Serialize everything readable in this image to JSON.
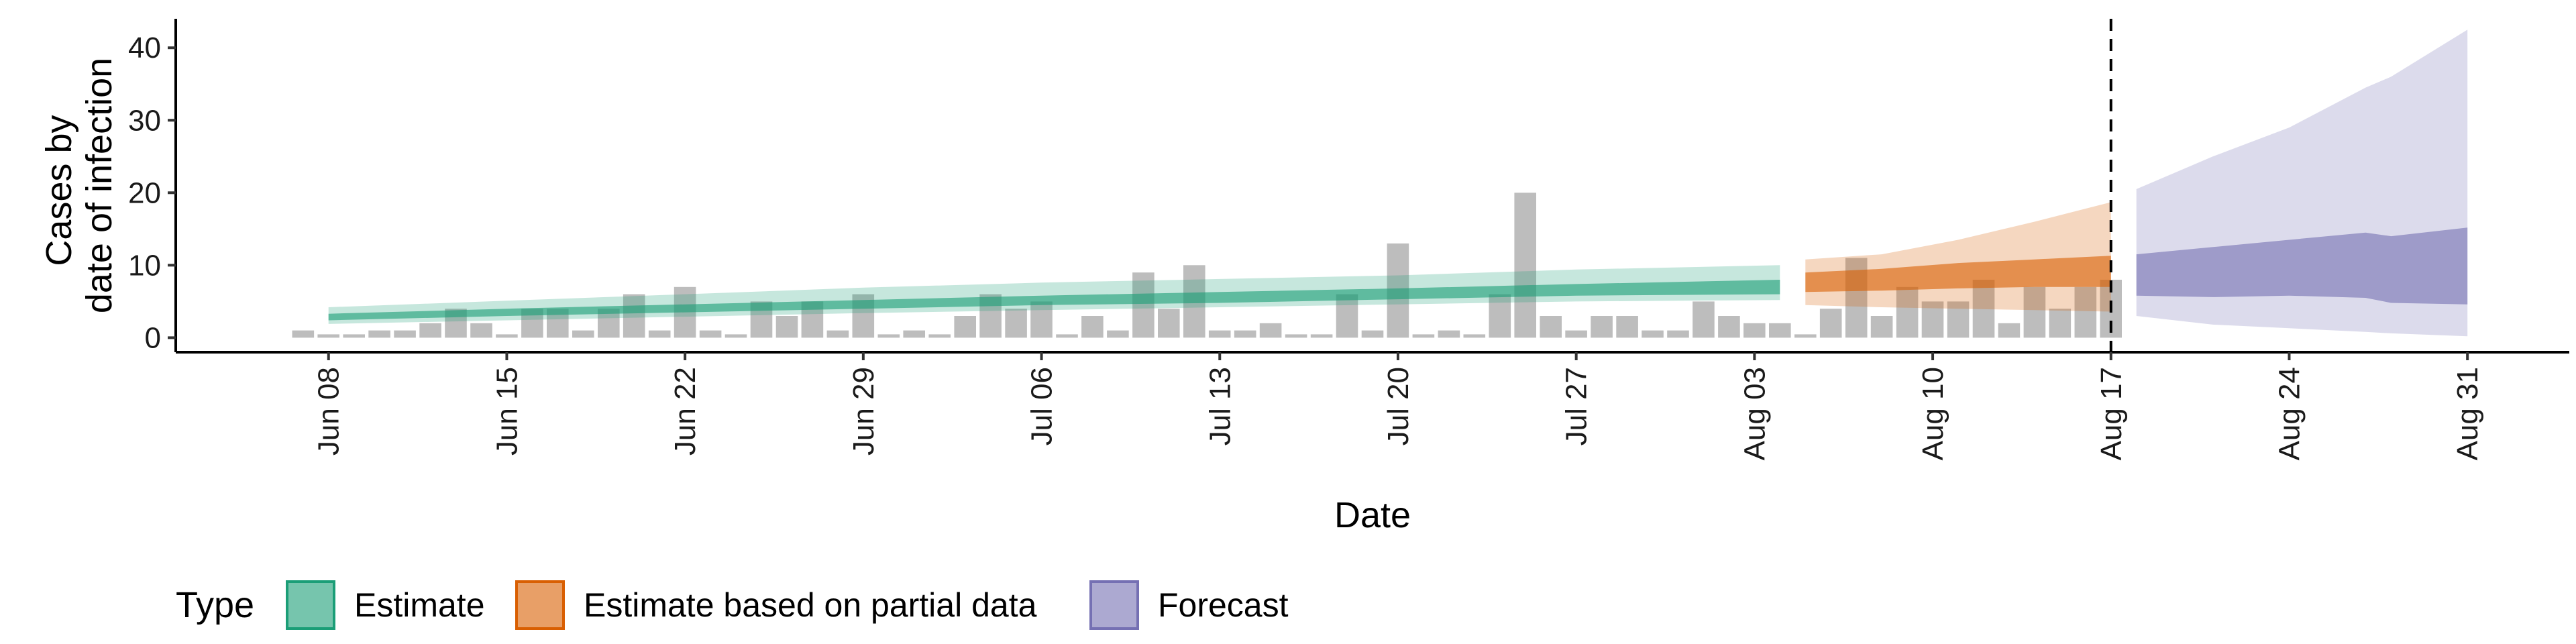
{
  "chart_data": {
    "type": "area",
    "xlabel": "Date",
    "ylabel_lines": [
      "Cases by",
      "date of infection"
    ],
    "y_ticks": [
      0,
      10,
      20,
      30,
      40
    ],
    "ylim": [
      -2,
      44
    ],
    "x_ticks": [
      {
        "date": "2020-06-08",
        "label": "Jun 08"
      },
      {
        "date": "2020-06-15",
        "label": "Jun 15"
      },
      {
        "date": "2020-06-22",
        "label": "Jun 22"
      },
      {
        "date": "2020-06-29",
        "label": "Jun 29"
      },
      {
        "date": "2020-07-06",
        "label": "Jul 06"
      },
      {
        "date": "2020-07-13",
        "label": "Jul 13"
      },
      {
        "date": "2020-07-20",
        "label": "Jul 20"
      },
      {
        "date": "2020-07-27",
        "label": "Jul 27"
      },
      {
        "date": "2020-08-03",
        "label": "Aug 03"
      },
      {
        "date": "2020-08-10",
        "label": "Aug 10"
      },
      {
        "date": "2020-08-17",
        "label": "Aug 17"
      },
      {
        "date": "2020-08-24",
        "label": "Aug 24"
      },
      {
        "date": "2020-08-31",
        "label": "Aug 31"
      }
    ],
    "xlim": [
      "2020-06-02",
      "2020-09-04"
    ],
    "vline_date": "2020-08-17",
    "observed_cases": {
      "dates": [
        "2020-06-07",
        "2020-06-08",
        "2020-06-09",
        "2020-06-10",
        "2020-06-11",
        "2020-06-12",
        "2020-06-13",
        "2020-06-14",
        "2020-06-15",
        "2020-06-16",
        "2020-06-17",
        "2020-06-18",
        "2020-06-19",
        "2020-06-20",
        "2020-06-21",
        "2020-06-22",
        "2020-06-23",
        "2020-06-24",
        "2020-06-25",
        "2020-06-26",
        "2020-06-27",
        "2020-06-28",
        "2020-06-29",
        "2020-06-30",
        "2020-07-01",
        "2020-07-02",
        "2020-07-03",
        "2020-07-04",
        "2020-07-05",
        "2020-07-06",
        "2020-07-07",
        "2020-07-08",
        "2020-07-09",
        "2020-07-10",
        "2020-07-11",
        "2020-07-12",
        "2020-07-13",
        "2020-07-14",
        "2020-07-15",
        "2020-07-16",
        "2020-07-17",
        "2020-07-18",
        "2020-07-19",
        "2020-07-20",
        "2020-07-21",
        "2020-07-22",
        "2020-07-23",
        "2020-07-24",
        "2020-07-25",
        "2020-07-26",
        "2020-07-27",
        "2020-07-28",
        "2020-07-29",
        "2020-07-30",
        "2020-07-31",
        "2020-08-01",
        "2020-08-02",
        "2020-08-03",
        "2020-08-04",
        "2020-08-05",
        "2020-08-06",
        "2020-08-07",
        "2020-08-08",
        "2020-08-09",
        "2020-08-10",
        "2020-08-11",
        "2020-08-12",
        "2020-08-13",
        "2020-08-14",
        "2020-08-15",
        "2020-08-16",
        "2020-08-17"
      ],
      "values": [
        1,
        0,
        0,
        1,
        1,
        2,
        4,
        2,
        0,
        4,
        4,
        1,
        4,
        6,
        1,
        7,
        1,
        0,
        5,
        3,
        5,
        1,
        6,
        0,
        1,
        0,
        3,
        6,
        4,
        5,
        0,
        3,
        1,
        9,
        4,
        10,
        1,
        1,
        2,
        0,
        0,
        6,
        1,
        13,
        0,
        1,
        0,
        6,
        20,
        3,
        1,
        3,
        3,
        1,
        1,
        5,
        3,
        2,
        2,
        0,
        4,
        11,
        3,
        7,
        5,
        5,
        8,
        2,
        7,
        4,
        7,
        8
      ]
    },
    "series": [
      {
        "name": "Estimate",
        "color": "#1b9e77",
        "dates": [
          "2020-06-08",
          "2020-06-15",
          "2020-06-22",
          "2020-06-29",
          "2020-07-06",
          "2020-07-13",
          "2020-07-20",
          "2020-07-27",
          "2020-08-04"
        ],
        "outer_low": [
          1.9,
          2.4,
          2.9,
          3.4,
          3.8,
          4.2,
          4.6,
          5.0,
          5.2
        ],
        "outer_high": [
          4.2,
          5.1,
          6.0,
          6.9,
          7.6,
          8.1,
          8.6,
          9.4,
          10.0
        ],
        "inner_low": [
          2.4,
          3.0,
          3.5,
          4.0,
          4.5,
          4.8,
          5.3,
          5.8,
          6.0
        ],
        "inner_high": [
          3.3,
          4.0,
          4.6,
          5.2,
          5.8,
          6.3,
          6.8,
          7.4,
          8.0
        ]
      },
      {
        "name": "Estimate based on partial data",
        "color": "#d95f02",
        "dates": [
          "2020-08-05",
          "2020-08-08",
          "2020-08-11",
          "2020-08-14",
          "2020-08-17"
        ],
        "outer_low": [
          4.5,
          4.2,
          4.0,
          3.8,
          3.6
        ],
        "outer_high": [
          10.8,
          11.5,
          13.5,
          16.0,
          18.7
        ],
        "inner_low": [
          6.3,
          6.5,
          6.8,
          7.0,
          7.0
        ],
        "inner_high": [
          9.0,
          9.5,
          10.3,
          10.8,
          11.3
        ]
      },
      {
        "name": "Forecast",
        "color": "#7570b3",
        "dates": [
          "2020-08-18",
          "2020-08-21",
          "2020-08-24",
          "2020-08-27",
          "2020-08-28",
          "2020-08-31"
        ],
        "outer_low": [
          3.0,
          1.8,
          1.3,
          0.8,
          0.6,
          0.2
        ],
        "outer_high": [
          20.5,
          25.0,
          29.0,
          34.5,
          36.0,
          42.5
        ],
        "inner_low": [
          5.8,
          5.6,
          5.8,
          5.5,
          4.8,
          4.6
        ],
        "inner_high": [
          11.5,
          12.5,
          13.5,
          14.5,
          14.0,
          15.2
        ]
      }
    ],
    "legend": {
      "title": "Type",
      "position": "bottom-left",
      "entries": [
        "Estimate",
        "Estimate based on partial data",
        "Forecast"
      ]
    },
    "grid": false
  }
}
